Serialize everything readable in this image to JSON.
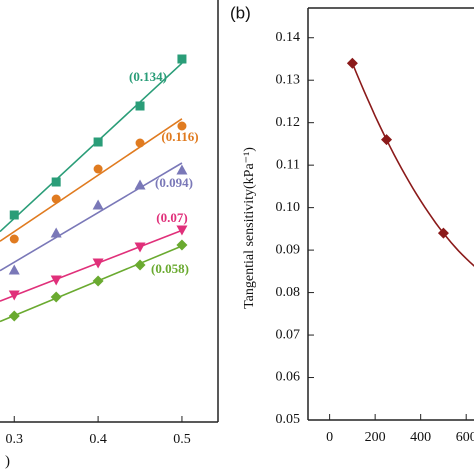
{
  "chart_data": [
    {
      "type": "scatter",
      "xlabel": ")",
      "x": [
        0.3,
        0.35,
        0.4,
        0.45,
        0.5
      ],
      "xlim": [
        0.283,
        0.543
      ],
      "xticks": [
        0.3,
        0.4,
        0.5
      ],
      "ylim": [
        0,
        4.22
      ],
      "fit": true,
      "series": [
        {
          "color": "#2a9d78",
          "marker": "square",
          "label": "(0.134)",
          "values": [
            2.07,
            2.4,
            2.8,
            3.16,
            3.63
          ]
        },
        {
          "color": "#e07b20",
          "marker": "circle",
          "label": "(0.116)",
          "values": [
            1.83,
            2.23,
            2.53,
            2.79,
            2.96
          ]
        },
        {
          "color": "#7a78b8",
          "marker": "triangle-up",
          "label": "(0.094)",
          "values": [
            1.52,
            1.89,
            2.17,
            2.37,
            2.52
          ]
        },
        {
          "color": "#e0307a",
          "marker": "triangle-down",
          "label": "(0.07)",
          "values": [
            1.27,
            1.42,
            1.59,
            1.75,
            1.92
          ]
        },
        {
          "color": "#6aaa30",
          "marker": "diamond",
          "label": "(0.058)",
          "values": [
            1.06,
            1.25,
            1.41,
            1.57,
            1.77
          ]
        }
      ]
    },
    {
      "type": "scatter",
      "panel": "(b)",
      "ylabel": "Tangential sensitivity(kPa⁻¹)",
      "xlim": [
        -95,
        1100
      ],
      "xticks": [
        0,
        200,
        400,
        600
      ],
      "ylim": [
        0.05,
        0.147
      ],
      "yticks": [
        0.05,
        0.06,
        0.07,
        0.08,
        0.09,
        {
          "value": 0.1,
          "label": "0.10"
        },
        0.11,
        0.12,
        0.13,
        0.14
      ],
      "fit": true,
      "series": [
        {
          "color": "#8b1a1a",
          "marker": "diamond",
          "x": [
            100,
            250,
            500
          ],
          "values": [
            0.134,
            0.116,
            0.094
          ]
        }
      ]
    }
  ]
}
